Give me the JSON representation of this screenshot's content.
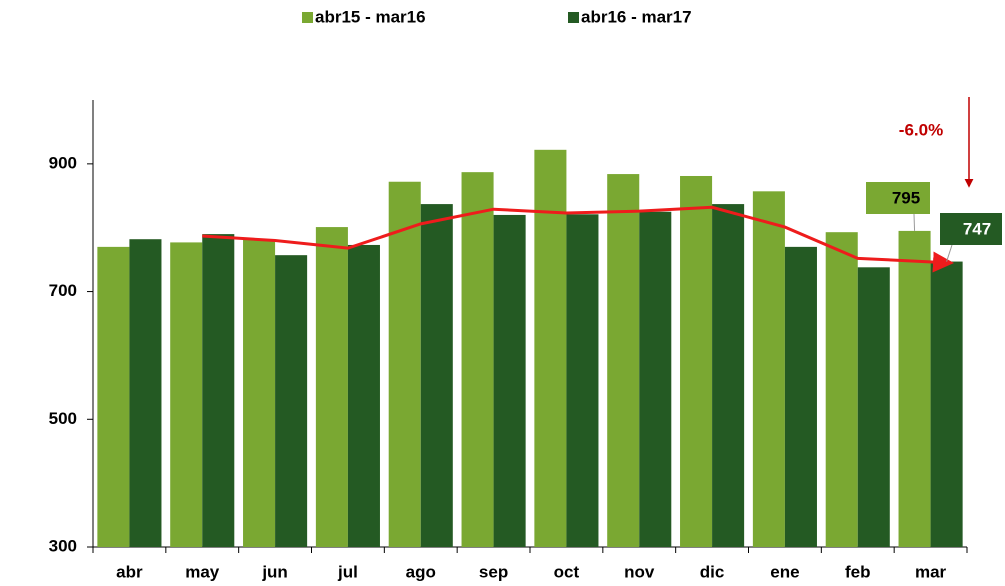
{
  "chart_data": {
    "type": "bar",
    "categories": [
      "abr",
      "may",
      "jun",
      "jul",
      "ago",
      "sep",
      "oct",
      "nov",
      "dic",
      "ene",
      "feb",
      "mar"
    ],
    "series": [
      {
        "name": "abr15 - mar16",
        "color": "#7aa832",
        "values": [
          770,
          777,
          782,
          801,
          872,
          887,
          922,
          884,
          881,
          857,
          793,
          795
        ]
      },
      {
        "name": "abr16 - mar17",
        "color": "#245a23",
        "values": [
          782,
          790,
          757,
          773,
          837,
          820,
          821,
          825,
          837,
          770,
          738,
          747
        ]
      },
      {
        "type": "line",
        "color": "#ee1c1c",
        "values": [
          null,
          787,
          780,
          768,
          806,
          829,
          823,
          826,
          832,
          801,
          752,
          745
        ]
      }
    ],
    "annotation": "-6.0%",
    "ylim": [
      300,
      1000
    ],
    "yticks": [
      300,
      500,
      700,
      900
    ]
  }
}
